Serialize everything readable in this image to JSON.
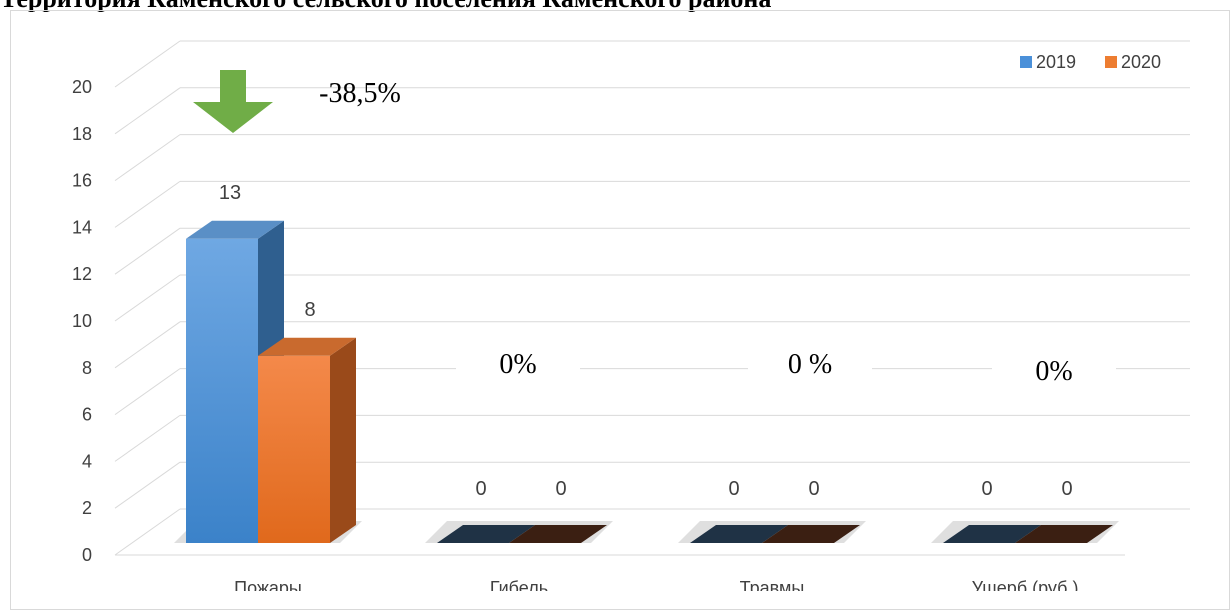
{
  "header": {
    "text": "Территория Каменского сельского поселения Каменского района"
  },
  "chart_data": {
    "type": "bar",
    "style": "3d-clustered-column",
    "categories": [
      "Пожары",
      "Гибель",
      "Травмы",
      "Ущерб (руб.)"
    ],
    "series": [
      {
        "name": "2019",
        "values": [
          13,
          0,
          0,
          0
        ],
        "color": "#4a90d9",
        "labels": [
          "13",
          "0",
          "0",
          "0"
        ]
      },
      {
        "name": "2020",
        "values": [
          8,
          0,
          0,
          0
        ],
        "color": "#ed7d31",
        "labels": [
          "8",
          "0",
          "0",
          "0"
        ]
      }
    ],
    "ylim": [
      0,
      20
    ],
    "yticks": [
      "0",
      "2",
      "4",
      "6",
      "8",
      "10",
      "12",
      "14",
      "16",
      "18",
      "20"
    ],
    "grid": true,
    "legend": "top-right",
    "annotations": [
      {
        "text": "-38,5%",
        "category": 0
      },
      {
        "text": "0%",
        "category": 1
      },
      {
        "text": "0 %",
        "category": 2
      },
      {
        "text": "0%",
        "category": 3
      }
    ],
    "arrow": {
      "category": 0,
      "direction": "down",
      "color": "#70ad47"
    }
  }
}
